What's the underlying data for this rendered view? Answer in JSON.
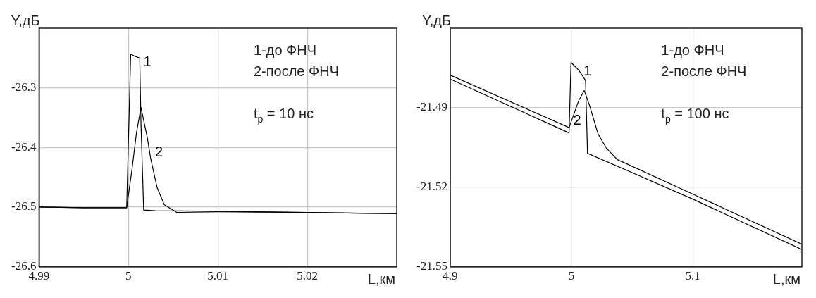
{
  "chart_data": [
    {
      "type": "line",
      "xlabel": "L,км",
      "ylabel": "Y,дБ",
      "xlim": [
        4.99,
        5.03
      ],
      "xticks": [
        4.99,
        5,
        5.01,
        5.02
      ],
      "ylim": [
        -26.6,
        -26.2
      ],
      "yticks": [
        -26.6,
        -26.5,
        -26.4,
        -26.3
      ],
      "grid": true,
      "annotations": [
        "1-до ФНЧ",
        "2-после ФНЧ",
        "t$_{p}$ = 10 нс"
      ],
      "series": [
        {
          "name": "1",
          "color": "#000000",
          "x": [
            4.99,
            4.995,
            4.9998,
            5.00025,
            5.0007,
            5.00126,
            5.0014,
            5.0017,
            5.003,
            5.01,
            5.02,
            5.03
          ],
          "values": [
            -26.5,
            -26.501,
            -26.501,
            -26.243,
            -26.247,
            -26.25,
            -26.36,
            -26.505,
            -26.506,
            -26.507,
            -26.509,
            -26.511
          ]
        },
        {
          "name": "2",
          "color": "#000000",
          "x": [
            4.99,
            4.995,
            4.9998,
            5.0004,
            5.0009,
            5.0014,
            5.0021,
            5.0025,
            5.0032,
            5.004,
            5.0054,
            5.01,
            5.02,
            5.03
          ],
          "values": [
            -26.5,
            -26.501,
            -26.501,
            -26.436,
            -26.375,
            -26.333,
            -26.383,
            -26.42,
            -26.467,
            -26.496,
            -26.509,
            -26.508,
            -26.509,
            -26.511
          ]
        }
      ]
    },
    {
      "type": "line",
      "xlabel": "L,км",
      "ylabel": "Y,дБ",
      "xlim": [
        4.9,
        5.19
      ],
      "xticks": [
        4.9,
        5,
        5.1
      ],
      "ylim": [
        -21.55,
        -21.46
      ],
      "yticks": [
        -21.55,
        -21.52,
        -21.49
      ],
      "grid": true,
      "annotations": [
        "1-до ФНЧ",
        "2-после ФНЧ",
        "t$_{p}$ = 100 нс"
      ],
      "series": [
        {
          "name": "1",
          "color": "#000000",
          "x": [
            4.9,
            4.998,
            4.9996,
            5.0059,
            5.0116,
            5.0132,
            5.05,
            5.1,
            5.19
          ],
          "values": [
            -21.4792,
            -21.4995,
            -21.4729,
            -21.4758,
            -21.4797,
            -21.5072,
            -21.5145,
            -21.5245,
            -21.5435
          ]
        },
        {
          "name": "2",
          "color": "#000000",
          "x": [
            4.9,
            4.998,
            5.0059,
            5.0105,
            5.015,
            5.0219,
            5.0287,
            5.0378,
            5.0447,
            5.1,
            5.19
          ],
          "values": [
            -21.4777,
            -21.4975,
            -21.4874,
            -21.4835,
            -21.4893,
            -21.4999,
            -21.5052,
            -21.5096,
            -21.511,
            -21.5226,
            -21.5415
          ]
        }
      ]
    }
  ]
}
